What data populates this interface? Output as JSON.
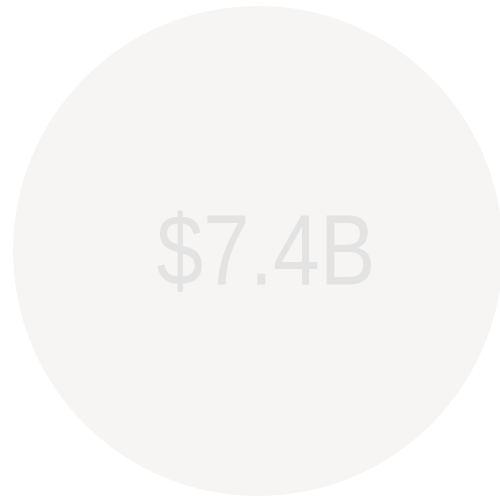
{
  "badge": {
    "label": "$7.4B"
  }
}
